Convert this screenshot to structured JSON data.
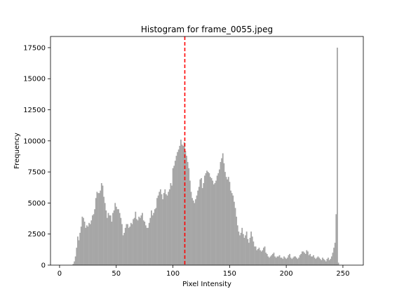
{
  "colors": {
    "bar": "#a6a6a6",
    "meanline": "#ff0000",
    "axis": "#000000",
    "background": "#ffffff"
  },
  "chart_data": {
    "type": "bar",
    "title": "Histogram for frame_0055.jpeg",
    "xlabel": "Pixel Intensity",
    "ylabel": "Frequency",
    "xlim": [
      -8,
      268
    ],
    "ylim": [
      0,
      18400
    ],
    "xticks": [
      0,
      50,
      100,
      150,
      200,
      250
    ],
    "yticks": [
      0,
      2500,
      5000,
      7500,
      10000,
      12500,
      15000,
      17500
    ],
    "grid": false,
    "legend": "none",
    "reference_line": {
      "x": 110.5,
      "style": "dashed"
    },
    "bins": {
      "x_start": 0,
      "bin_width": 1,
      "values": [
        0,
        0,
        0,
        0,
        0,
        0,
        0,
        0,
        0,
        0,
        0,
        0,
        100,
        300,
        700,
        1400,
        2300,
        2000,
        2600,
        3100,
        3900,
        3800,
        3500,
        3000,
        3200,
        3100,
        3400,
        3300,
        3600,
        4000,
        4100,
        4500,
        5400,
        5900,
        5800,
        5800,
        6000,
        6600,
        6400,
        5500,
        5000,
        4400,
        3800,
        4200,
        4000,
        4000,
        3500,
        4200,
        4400,
        5000,
        4700,
        4500,
        4500,
        4200,
        3800,
        3300,
        2400,
        2600,
        3000,
        3300,
        3300,
        3000,
        3100,
        3400,
        3300,
        3700,
        3800,
        4300,
        3700,
        3600,
        3900,
        3800,
        4000,
        4200,
        3600,
        3500,
        3200,
        3000,
        3000,
        3400,
        3800,
        4400,
        4000,
        4200,
        4500,
        4600,
        5400,
        5600,
        5900,
        6100,
        5700,
        5300,
        5800,
        6100,
        5700,
        5600,
        5900,
        6100,
        6600,
        6400,
        7800,
        8000,
        8400,
        8800,
        9100,
        9300,
        9600,
        10100,
        9700,
        9600,
        9900,
        9200,
        8800,
        8300,
        7800,
        6800,
        5900,
        5400,
        5200,
        5000,
        5300,
        5600,
        6000,
        6300,
        6900,
        7000,
        6200,
        6600,
        7200,
        7400,
        7600,
        7500,
        7400,
        7100,
        7000,
        6800,
        6500,
        6600,
        6800,
        7200,
        7400,
        7700,
        8300,
        8600,
        9000,
        8200,
        7500,
        7100,
        6900,
        7100,
        6700,
        6000,
        5800,
        5600,
        5100,
        4600,
        3900,
        3200,
        2700,
        2400,
        2600,
        3000,
        2500,
        2200,
        2400,
        2700,
        2100,
        1800,
        2200,
        2700,
        2300,
        1900,
        1500,
        1500,
        1200,
        1300,
        1400,
        1200,
        1100,
        1200,
        1400,
        1500,
        1000,
        900,
        700,
        600,
        700,
        800,
        900,
        1000,
        700,
        600,
        700,
        700,
        800,
        600,
        600,
        500,
        700,
        600,
        500,
        600,
        800,
        900,
        600,
        500,
        600,
        700,
        700,
        600,
        500,
        600,
        800,
        900,
        1100,
        1100,
        1000,
        900,
        1200,
        1100,
        800,
        900,
        700,
        700,
        800,
        600,
        500,
        600,
        700,
        600,
        500,
        400,
        600,
        500,
        400,
        300,
        500,
        600,
        400,
        500,
        700,
        1000,
        1400,
        1800,
        4100,
        17500,
        200
      ],
      "max_value": 17500
    }
  }
}
